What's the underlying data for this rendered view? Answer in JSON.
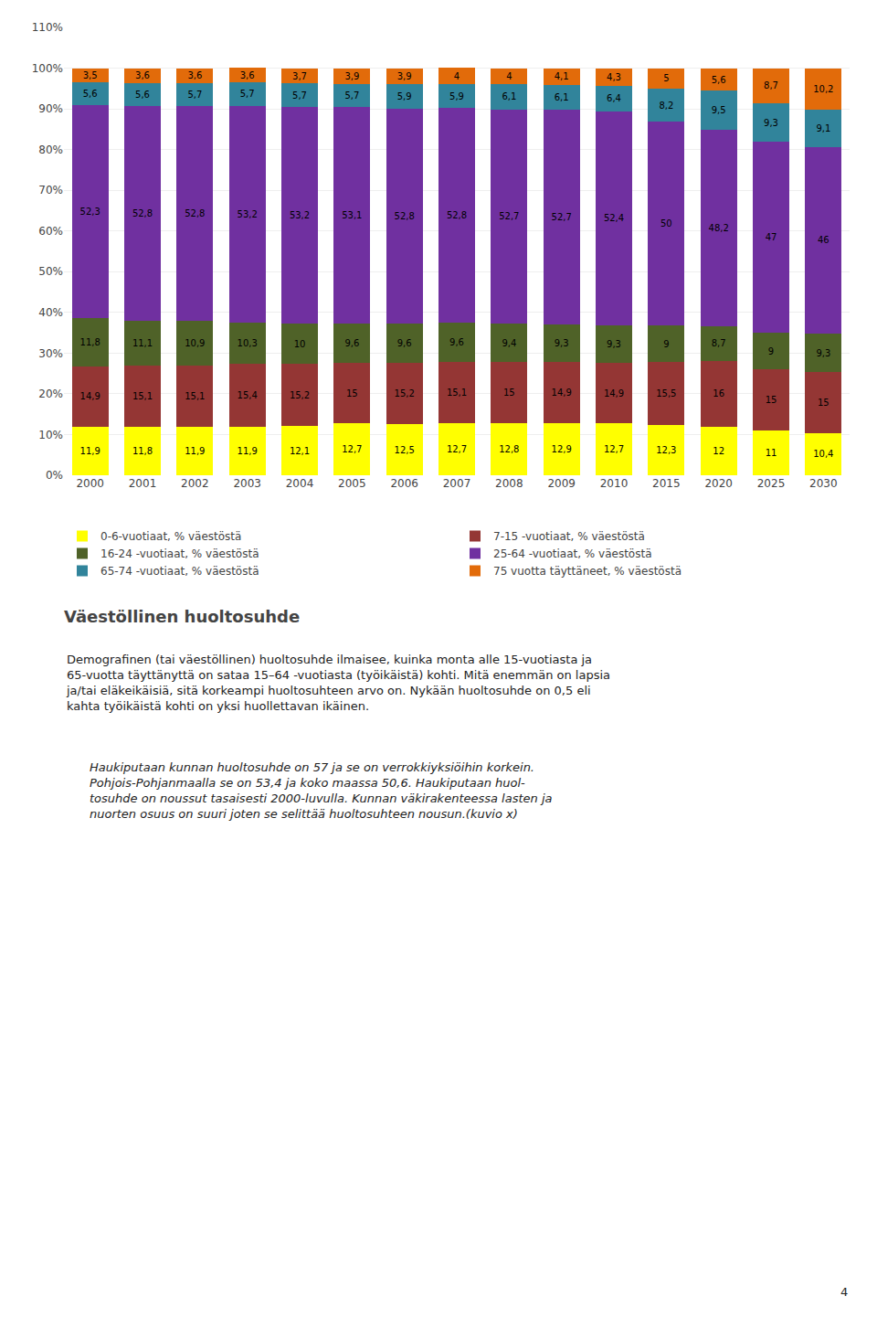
{
  "chart_data": {
    "type": "bar",
    "stacked": true,
    "data_labels": true,
    "grid": true,
    "title": "Väestöllinen huoltosuhde",
    "categories": [
      "2000",
      "2001",
      "2002",
      "2003",
      "2004",
      "2005",
      "2006",
      "2007",
      "2008",
      "2009",
      "2010",
      "2015",
      "2020",
      "2025",
      "2030"
    ],
    "series": [
      {
        "name": "0-6-vuotiaat, % väestöstä",
        "color": "#FFFF00",
        "values": [
          11.9,
          11.8,
          11.9,
          11.9,
          12.1,
          12.7,
          12.5,
          12.7,
          12.8,
          12.9,
          12.7,
          12.3,
          12,
          11,
          10.4
        ],
        "value_labels": [
          "11,9",
          "11,8",
          "11,9",
          "11,9",
          "12,1",
          "12,7",
          "12,5",
          "12,7",
          "12,8",
          "12,9",
          "12,7",
          "12,3",
          "12",
          "11",
          "10,4"
        ]
      },
      {
        "name": "7-15 -vuotiaat, % väestöstä",
        "color": "#943634",
        "values": [
          14.9,
          15.1,
          15.1,
          15.4,
          15.2,
          15,
          15.2,
          15.1,
          15,
          14.9,
          14.9,
          15.5,
          16,
          15,
          15
        ],
        "value_labels": [
          "14,9",
          "15,1",
          "15,1",
          "15,4",
          "15,2",
          "15",
          "15,2",
          "15,1",
          "15",
          "14,9",
          "14,9",
          "15,5",
          "16",
          "15",
          "15"
        ]
      },
      {
        "name": "16-24 -vuotiaat, % väestöstä",
        "color": "#4F6228",
        "values": [
          11.8,
          11.1,
          10.9,
          10.3,
          10,
          9.6,
          9.6,
          9.6,
          9.4,
          9.3,
          9.3,
          9,
          8.7,
          9,
          9.3
        ],
        "value_labels": [
          "11,8",
          "11,1",
          "10,9",
          "10,3",
          "10",
          "9,6",
          "9,6",
          "9,6",
          "9,4",
          "9,3",
          "9,3",
          "9",
          "8,7",
          "9",
          "9,3"
        ]
      },
      {
        "name": "25-64 -vuotiaat, % väestöstä",
        "color": "#7030A0",
        "values": [
          52.3,
          52.8,
          52.8,
          53.2,
          53.2,
          53.1,
          52.8,
          52.8,
          52.7,
          52.7,
          52.4,
          50,
          48.2,
          47,
          46
        ],
        "value_labels": [
          "52,3",
          "52,8",
          "52,8",
          "53,2",
          "53,2",
          "53,1",
          "52,8",
          "52,8",
          "52,7",
          "52,7",
          "52,4",
          "50",
          "48,2",
          "47",
          "46"
        ]
      },
      {
        "name": "65-74 -vuotiaat, % väestöstä",
        "color": "#31849B",
        "values": [
          5.6,
          5.6,
          5.7,
          5.7,
          5.7,
          5.7,
          5.9,
          5.9,
          6.1,
          6.1,
          6.4,
          8.2,
          9.5,
          9.3,
          9.1
        ],
        "value_labels": [
          "5,6",
          "5,6",
          "5,7",
          "5,7",
          "5,7",
          "5,7",
          "5,9",
          "5,9",
          "6,1",
          "6,1",
          "6,4",
          "8,2",
          "9,5",
          "9,3",
          "9,1"
        ]
      },
      {
        "name": "75 vuotta täyttäneet, % väestöstä",
        "color": "#E26B0A",
        "values": [
          3.5,
          3.6,
          3.6,
          3.6,
          3.7,
          3.9,
          3.9,
          4,
          4,
          4.1,
          4.3,
          5,
          5.6,
          8.7,
          10.2
        ],
        "value_labels": [
          "3,5",
          "3,6",
          "3,6",
          "3,6",
          "3,7",
          "3,9",
          "3,9",
          "4",
          "4",
          "4,1",
          "4,3",
          "5",
          "5,6",
          "8,7",
          "10,2"
        ]
      }
    ],
    "ylim": [
      0,
      110
    ],
    "yticks": [
      {
        "value": 0,
        "label": "0%"
      },
      {
        "value": 10,
        "label": "10%"
      },
      {
        "value": 20,
        "label": "20%"
      },
      {
        "value": 30,
        "label": "30%"
      },
      {
        "value": 40,
        "label": "40%"
      },
      {
        "value": 50,
        "label": "50%"
      },
      {
        "value": 60,
        "label": "60%"
      },
      {
        "value": 70,
        "label": "70%"
      },
      {
        "value": 80,
        "label": "80%"
      },
      {
        "value": 90,
        "label": "90%"
      },
      {
        "value": 100,
        "label": "100%"
      },
      {
        "value": 110,
        "label": "110%"
      }
    ],
    "annotations": [
      "Demografinen (tai väestöllinen) huoltosuhde ilmaisee, kuinka monta alle 15-vuotiasta ja\n65-vuotta täyttänyttä on sataa 15–64 -vuotiasta (työikäistä) kohti. Mitä enemmän on lapsia\nja/tai eläkeikäisiä, sitä korkeampi huoltosuhteen arvo on. Nykään huoltosuhde on 0,5 eli\nkahta työikäistä kohti on yksi huollettavan ikäinen.",
      "Haukiputaan kunnan huoltosuhde on 57 ja se on verrokkiyksiöihin korkein.\nPohjois-Pohjanmaalla se on 53,4 ja koko maassa 50,6. Haukiputaan huol-\ntosuhde on noussut tasaisesti 2000-luvulla. Kunnan väkirakenteessa lasten ja\nnuorten osuus on suuri joten se selittää huoltosuhteen nousun.(kuvio x)",
      "4"
    ]
  }
}
